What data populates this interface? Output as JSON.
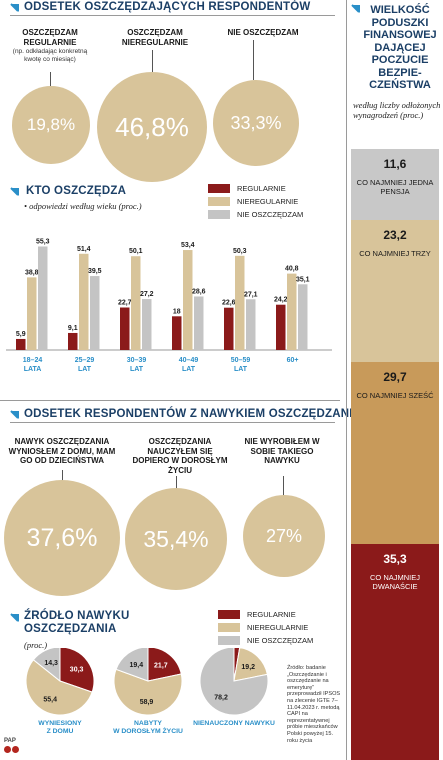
{
  "colors": {
    "regularly": "#8b1a1a",
    "irregularly": "#d8c49a",
    "not_saving": "#c4c4c4",
    "accent_blue": "#2a8fc8",
    "title_navy": "#1b3f66"
  },
  "section1": {
    "title": "ODSETEK OSZCZĘDZAJĄCYCH RESPONDENTÓW",
    "items": [
      {
        "label": "OSZCZĘDZAM REGULARNIE",
        "note": "(np. odkładając konkretną kwotę co miesiąc)",
        "value": "19,8%"
      },
      {
        "label": "OSZCZĘDZAM NIEREGULARNIE",
        "value": "46,8%"
      },
      {
        "label": "NIE OSZCZĘDZAM",
        "value": "33,3%"
      }
    ]
  },
  "section2": {
    "title": "KTO OSZCZĘDZA",
    "note": "odpowiedzi według wieku (proc.)"
  },
  "legend": {
    "regularly": "REGULARNIE",
    "irregularly": "NIEREGULARNIE",
    "not_saving": "NIE OSZCZĘDZAM"
  },
  "chart_data": [
    {
      "type": "bar",
      "categories": [
        "18–24 LATA",
        "25–29 LAT",
        "30–39 LAT",
        "40–49 LAT",
        "50–59 LAT",
        "60+"
      ],
      "series": [
        {
          "name": "REGULARNIE",
          "values": [
            5.9,
            9.1,
            22.7,
            18,
            22.6,
            24.2
          ],
          "labels": [
            "5,9",
            "9,1",
            "22,7",
            "18",
            "22,6",
            "24,2"
          ]
        },
        {
          "name": "NIEREGULARNIE",
          "values": [
            38.8,
            51.4,
            50.1,
            53.4,
            50.3,
            40.8
          ],
          "labels": [
            "38,8",
            "51,4",
            "50,1",
            "53,4",
            "50,3",
            "40,8"
          ]
        },
        {
          "name": "NIE OSZCZĘDZAM",
          "values": [
            55.3,
            39.5,
            27.2,
            28.6,
            27.1,
            35.1
          ],
          "labels": [
            "55,3",
            "39,5",
            "27,2",
            "28,6",
            "27,1",
            "35,1"
          ]
        }
      ],
      "ylim": [
        0,
        60
      ]
    },
    {
      "type": "pie",
      "title": "ŹRÓDŁO NAWYKU OSZCZĘDZANIA",
      "note": "(proc.)",
      "pies": [
        {
          "label": "WYNIESIONY Z DOMU",
          "values": [
            30.3,
            55.4,
            14.3
          ],
          "labels": [
            "30,3",
            "55,4",
            "14,3"
          ]
        },
        {
          "label": "NABYTY W DOROSŁYM ŻYCIU",
          "values": [
            21.7,
            58.9,
            19.4
          ],
          "labels": [
            "21,7",
            "58,9",
            "19,4"
          ]
        },
        {
          "label": "NIENAUCZONY NAWYKU",
          "values": [
            2.7,
            19.2,
            78.2
          ],
          "labels": [
            "2,7",
            "19,2",
            "78,2"
          ]
        }
      ]
    },
    {
      "type": "bar",
      "title": "WIELKOŚĆ PODUSZKI FINANSOWEJ DAJĄCEJ POCZUCIE BEZPIECZEŃSTWA",
      "note": "według liczby odłożonych wynagrodzeń (proc.)",
      "categories": [
        "CO NAJMNIEJ JEDNA PENSJA",
        "CO NAJMNIEJ TRZY",
        "CO NAJMNIEJ SZEŚĆ",
        "CO NAJMNIEJ DWANAŚCIE"
      ],
      "values": [
        11.6,
        23.2,
        29.7,
        35.3
      ],
      "labels": [
        "11,6",
        "23,2",
        "29,7",
        "35,3"
      ]
    }
  ],
  "section3": {
    "title": "ODSETEK RESPONDENTÓW Z NAWYKIEM OSZCZĘDZANIA",
    "items": [
      {
        "label": "NAWYK OSZCZĘDZANIA WYNIOSŁEM Z DOMU, MAM GO OD DZIECIŃSTWA",
        "value": "37,6%"
      },
      {
        "label": "OSZCZĘDZANIA NAUCZYŁEM SIĘ DOPIERO W DOROSŁYM ŻYCIU",
        "value": "35,4%"
      },
      {
        "label": "NIE WYROBIŁEM W SOBIE TAKIEGO NAWYKU",
        "value": "27%"
      }
    ]
  },
  "sidebar": {
    "title": "WIELKOŚĆ PODUSZKI FINANSOWEJ DAJĄCEJ POCZUCIE BEZPIE-CZEŃSTWA",
    "note": "według liczby odłożonych wynagrodzeń (proc.)"
  },
  "source": "Źródło: badanie „Oszczędzanie i oszczędzanie na emeryturę” przeprowadził IPSOS na zlecenie IGTE 7–11.04.2023 r. metodą CAPI na reprezentatywnej próbie mieszkańców Polski powyżej 15. roku życia",
  "credit": "PAP"
}
